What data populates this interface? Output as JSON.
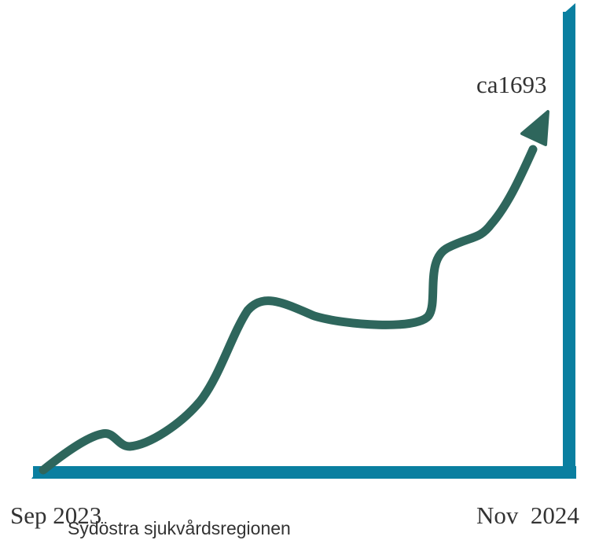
{
  "chart_data": {
    "type": "line",
    "x_start_label": "Sep 2023",
    "x_end_label": "Nov  2024",
    "region_label": "Sydöstra sjukvårdsregionen",
    "end_value_label": "ca1693",
    "end_value": 1693,
    "axis_color": "#0a7fa0",
    "line_color": "#2e665c",
    "grid": false,
    "legend": "none"
  }
}
